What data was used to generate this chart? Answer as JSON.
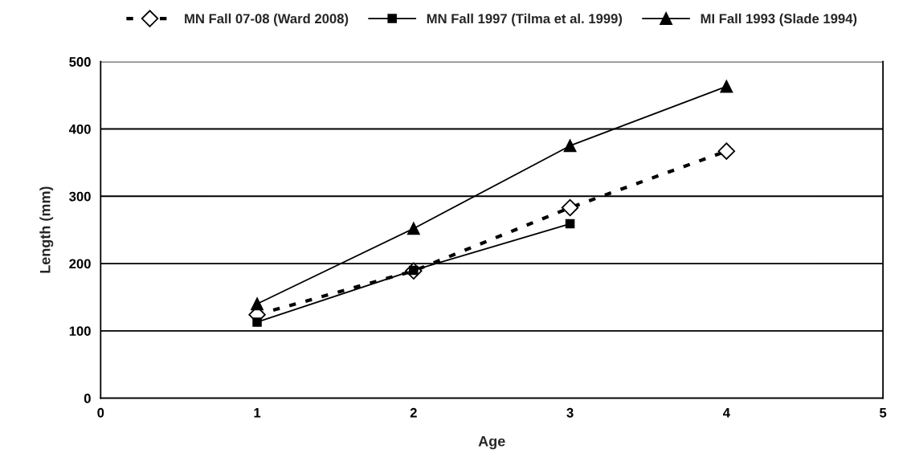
{
  "chart_data": {
    "type": "line",
    "xlabel": "Age",
    "ylabel": "Length (mm)",
    "x": [
      1,
      2,
      3,
      4
    ],
    "series": [
      {
        "name": "MN Fall 07-08 (Ward 2008)",
        "color": "#000000",
        "values": [
          124,
          189,
          283,
          367
        ],
        "marker": "diamond",
        "line_style": "dashed"
      },
      {
        "name": "MN Fall 1997 (Tilma et al. 1999)",
        "color": "#000000",
        "values": [
          113,
          190,
          259,
          null
        ],
        "marker": "square",
        "line_style": "solid"
      },
      {
        "name": "MI Fall 1993 (Slade 1994)",
        "color": "#000000",
        "values": [
          140,
          252,
          375,
          463
        ],
        "marker": "triangle",
        "line_style": "solid"
      }
    ],
    "xlim": [
      0,
      5
    ],
    "xticks": [
      0,
      1,
      2,
      3,
      4,
      5
    ],
    "ylim": [
      0,
      500
    ],
    "yticks": [
      0,
      100,
      200,
      300,
      400,
      500
    ],
    "grid": "y",
    "legend": "top"
  }
}
